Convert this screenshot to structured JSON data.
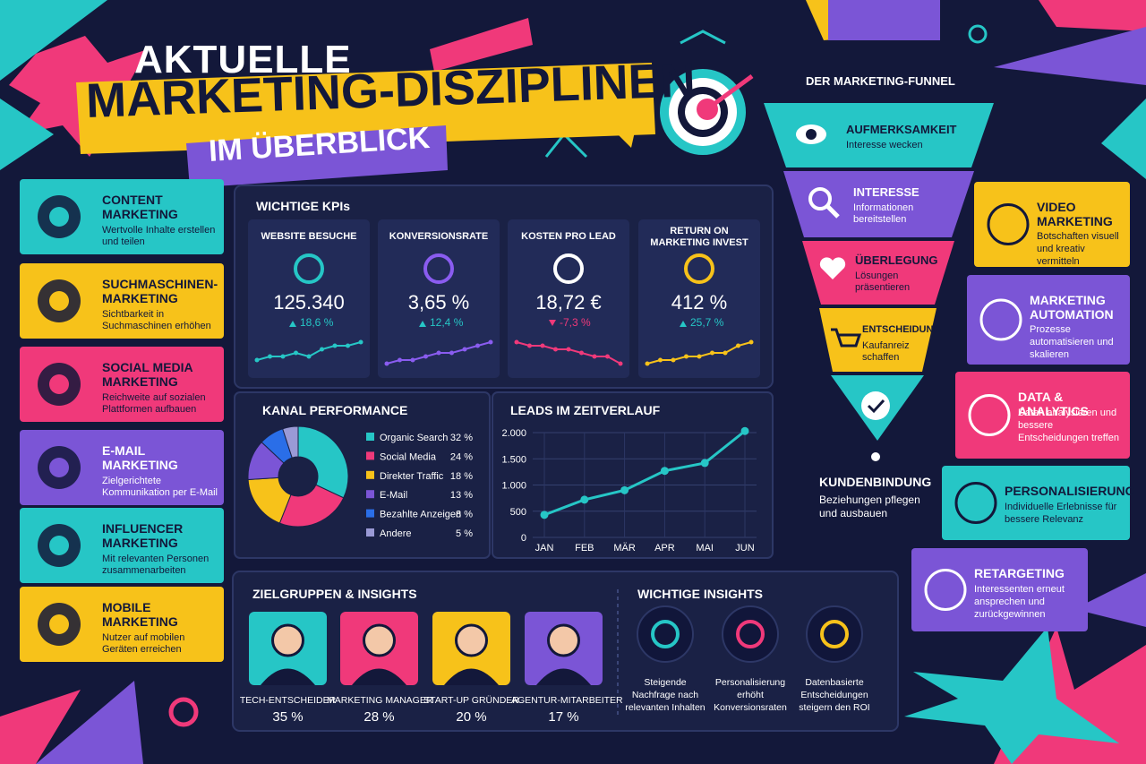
{
  "header": {
    "line1": "AKTUELLE",
    "line2": "MARKETING-DISZIPLINEN",
    "line3": "IM ÜBERBLICK"
  },
  "disciplines_left": [
    {
      "title": "CONTENT MARKETING",
      "text": "Wertvolle Inhalte erstellen und teilen"
    },
    {
      "title": "SUCHMASCHINEN-MARKETING",
      "text": "Sichtbarkeit in Suchmaschinen erhöhen"
    },
    {
      "title": "SOCIAL MEDIA MARKETING",
      "text": "Reichweite auf sozialen Plattformen aufbauen"
    },
    {
      "title": "E-MAIL MARKETING",
      "text": "Zielgerichtete Kommunikation per E-Mail"
    },
    {
      "title": "INFLUENCER MARKETING",
      "text": "Mit relevanten Personen zusammenarbeiten"
    },
    {
      "title": "MOBILE MARKETING",
      "text": "Nutzer auf mobilen Geräten erreichen"
    }
  ],
  "kpis": {
    "title": "WICHTIGE KPIs",
    "cards": [
      {
        "label": "WEBSITE BESUCHE",
        "value": "125.340",
        "change": "18,6 %",
        "color": "#26c6c6",
        "sparkline": {
          "values": [
            2,
            3,
            3,
            4,
            3,
            5,
            6,
            6,
            7
          ],
          "ylim": [
            0,
            10
          ]
        }
      },
      {
        "label": "KONVERSIONSRATE",
        "value": "3,65 %",
        "change": "12,4 %",
        "color": "#8a5cf0",
        "sparkline": {
          "values": [
            1,
            2,
            2,
            3,
            4,
            4,
            5,
            6,
            7
          ],
          "ylim": [
            0,
            10
          ]
        }
      },
      {
        "label": "KOSTEN PRO LEAD",
        "value": "18,72 €",
        "change": "-7,3 %",
        "color": "#f0397a",
        "sparkline": {
          "values": [
            7,
            6,
            6,
            5,
            5,
            4,
            3,
            3,
            1
          ],
          "ylim": [
            0,
            10
          ]
        }
      },
      {
        "label": "RETURN ON MARKETING INVEST",
        "value": "412 %",
        "change": "25,7 %",
        "color": "#f7c21a",
        "sparkline": {
          "values": [
            1,
            2,
            2,
            3,
            3,
            4,
            4,
            6,
            7
          ],
          "ylim": [
            0,
            10
          ]
        }
      }
    ]
  },
  "channel_chart": {
    "type": "pie",
    "title": "KANAL PERFORMANCE",
    "categories": [
      "Organic Search",
      "Social Media",
      "Direkter Traffic",
      "E-Mail",
      "Bezahlte Anzeigen",
      "Andere"
    ],
    "values": [
      32,
      24,
      18,
      13,
      8,
      5
    ],
    "value_labels": [
      "32 %",
      "24 %",
      "18 %",
      "13 %",
      "8 %",
      "5 %"
    ],
    "colors": [
      "#26c6c6",
      "#f0397a",
      "#f7c21a",
      "#7b55d6",
      "#2a6ee8",
      "#9a9ad6"
    ]
  },
  "leads_chart": {
    "type": "line",
    "title": "LEADS IM ZEITVERLAUF",
    "categories": [
      "JAN",
      "FEB",
      "MÄR",
      "APR",
      "MAI",
      "JUN"
    ],
    "values": [
      430,
      720,
      900,
      1270,
      1420,
      2030
    ],
    "color": "#26c6c6",
    "ylim": [
      0,
      2000
    ],
    "yticks": [
      0,
      500,
      {
        "value": 1000,
        "label": "1.000"
      },
      {
        "value": 1500,
        "label": "1.500"
      },
      {
        "value": 2000,
        "label": "2.000"
      }
    ],
    "grid": true
  },
  "funnel": {
    "title": "DER MARKETING-FUNNEL",
    "stages": [
      {
        "title": "AUFMERKSAMKEIT",
        "text": "Interesse wecken"
      },
      {
        "title": "INTERESSE",
        "text": "Informationen bereitstellen"
      },
      {
        "title": "ÜBERLEGUNG",
        "text": "Lösungen präsentieren"
      },
      {
        "title": "ENTSCHEIDUNG",
        "text": "Kaufanreiz schaffen"
      }
    ],
    "retention": {
      "title": "KUNDENBINDUNG",
      "text": "Beziehungen pflegen und ausbauen"
    }
  },
  "disciplines_right": [
    {
      "title": "VIDEO MARKETING",
      "text": "Botschaften visuell und kreativ vermitteln"
    },
    {
      "title": "MARKETING AUTOMATION",
      "text": "Prozesse automatisieren und skalieren"
    },
    {
      "title": "DATA & ANALYTICS",
      "text": "Daten analysieren und bessere Entscheidungen treffen"
    },
    {
      "title": "PERSONALISIERUNG",
      "text": "Individuelle Erlebnisse für bessere Relevanz"
    },
    {
      "title": "RETARGETING",
      "text": "Interessenten erneut ansprechen und zurückgewinnen"
    }
  ],
  "audiences": {
    "title": "ZIELGRUPPEN & INSIGHTS",
    "personas": [
      {
        "label": "TECH-ENTSCHEIDER",
        "share": "35 %"
      },
      {
        "label": "MARKETING MANAGER",
        "share": "28 %"
      },
      {
        "label": "START-UP GRÜNDER",
        "share": "20 %"
      },
      {
        "label": "AGENTUR-MITARBEITER",
        "share": "17 %"
      }
    ]
  },
  "insights": {
    "title": "WICHTIGE INSIGHTS",
    "items": [
      "Steigende Nachfrage nach relevanten Inhalten",
      "Personalisierung erhöht Konversionsraten",
      "Datenbasierte Entscheidungen steigern den ROI"
    ]
  }
}
